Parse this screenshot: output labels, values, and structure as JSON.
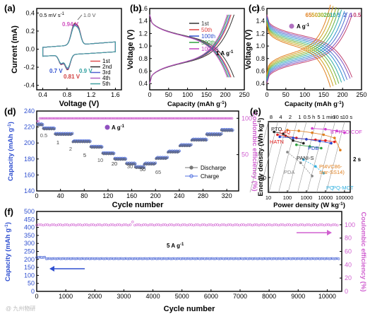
{
  "figure": {
    "watermark": "@ 九州物研"
  },
  "panels": {
    "a": {
      "letter": "(a)",
      "xlabel": "Voltage (V)",
      "ylabel": "Current (mA)",
      "xticks": [
        "0.4",
        "0.8",
        "1.2",
        "1.6"
      ],
      "yticks": [
        "-0.4",
        "-0.2",
        "0.0",
        "0.2",
        "0.4"
      ],
      "scan_rate": "0.5 mV s",
      "scan_rate_sup": "-1",
      "peak_labels": [
        "1.0 V",
        "0.94 V",
        "0.7 V",
        "0.81 V",
        "0.9 V"
      ],
      "legend": [
        "1st",
        "2nd",
        "3rd",
        "4th",
        "5th"
      ],
      "colors": [
        "#e05050",
        "#2b2b2b",
        "#5060d0",
        "#b060c0",
        "#40a0a0"
      ]
    },
    "b": {
      "letter": "(b)",
      "xlabel": "Capacity (mAh g",
      "xlabel_sup": "-1",
      "xlabel_end": ")",
      "ylabel": "Voltage (V)",
      "xticks": [
        "0",
        "50",
        "100",
        "150",
        "200",
        "250"
      ],
      "yticks": [
        "0.4",
        "0.6",
        "0.8",
        "1.0",
        "1.2",
        "1.4",
        "1.6"
      ],
      "legend": [
        "1st",
        "50th",
        "100th",
        "500th",
        "1000th"
      ],
      "colors": [
        "#333333",
        "#e04040",
        "#3050d0",
        "#30a040",
        "#c040c0"
      ],
      "current_label": "1 A g",
      "current_sup": "-1"
    },
    "c": {
      "letter": "(c)",
      "xlabel": "Capacity (mAh g",
      "xlabel_sup": "-1",
      "xlabel_end": ")",
      "ylabel": "Voltage (V)",
      "xticks": [
        "0",
        "50",
        "100",
        "150",
        "200",
        "250"
      ],
      "yticks": [
        "0.4",
        "0.6",
        "0.8",
        "1.0",
        "1.2",
        "1.4",
        "1.6"
      ],
      "rate_labels": [
        "65",
        "50",
        "30",
        "20",
        "10",
        "5",
        "2",
        "1",
        "0.5"
      ],
      "rate_colors": [
        "#e08020",
        "#d0a020",
        "#a0b020",
        "#60b040",
        "#30b0a0",
        "#3090d0",
        "#5070d0",
        "#8050c0",
        "#c04070"
      ],
      "unit_label": "A g",
      "unit_sup": "-1"
    },
    "d": {
      "letter": "(d)",
      "xlabel": "Cycle number",
      "ylabel": "Capacity (mAh g",
      "ylabel_sup": "-1",
      "ylabel_end": ")",
      "y2label": "Coulombic efficiency (%)",
      "xticks": [
        "0",
        "40",
        "80",
        "120",
        "160",
        "200",
        "240",
        "280",
        "320"
      ],
      "yticks": [
        "140",
        "160",
        "180",
        "200",
        "220",
        "240"
      ],
      "y2ticks": [
        "50",
        "100"
      ],
      "rate_labels": [
        "0.5",
        "1",
        "2",
        "5",
        "10",
        "20",
        "30",
        "50",
        "65"
      ],
      "unit_label": "A g",
      "unit_sup": "-1",
      "legend": [
        "Discharge",
        "Charge"
      ]
    },
    "e": {
      "letter": "(e)",
      "xlabel": "Power density (W kg",
      "xlabel_sup": "-1",
      "xlabel_end": ")",
      "ylabel": "Energy density (Wh kg",
      "ylabel_sup": "-1",
      "ylabel_end": ")",
      "xticks": [
        "10",
        "100",
        "1000",
        "10000",
        "100000"
      ],
      "yticks": [
        "100"
      ],
      "time_labels": [
        "8",
        "4",
        "2",
        "1",
        "0.5 h",
        "5",
        "1 min",
        "30 s",
        "10 s"
      ],
      "side_label": "2 s",
      "materials": [
        "PTO",
        "C4Q",
        "HATN",
        "BT-PTO COF",
        "PDB",
        "PANI-S",
        "PDA",
        "Pt4VC86-star-SS14)",
        "PQ",
        "PQ-MCT"
      ]
    },
    "f": {
      "letter": "(f)",
      "xlabel": "Cycle number",
      "ylabel": "Capacity (mAh g",
      "ylabel_sup": "-1",
      "ylabel_end": ")",
      "y2label": "Coulombic efficiency (%)",
      "xticks": [
        "0",
        "1000",
        "2000",
        "3000",
        "4000",
        "5000",
        "6000",
        "7000",
        "8000",
        "9000",
        "10000"
      ],
      "yticks": [
        "0",
        "50",
        "100",
        "150",
        "200",
        "250",
        "300",
        "350",
        "400",
        "450",
        "500"
      ],
      "y2ticks": [
        "0",
        "20",
        "40",
        "60",
        "80",
        "100"
      ],
      "current_label": "5 A g",
      "current_sup": "-1"
    }
  },
  "chart_data": [
    {
      "panel": "a",
      "type": "line",
      "title": "",
      "xlabel": "Voltage (V)",
      "ylabel": "Current (mA)",
      "xlim": [
        0.3,
        1.7
      ],
      "ylim": [
        -0.45,
        0.45
      ],
      "series_names": [
        "1st",
        "2nd",
        "3rd",
        "4th",
        "5th"
      ],
      "anodic_peak_V": [
        0.9,
        1.0
      ],
      "cathodic_peak_V": [
        0.7,
        0.81
      ],
      "peak_current_mA": {
        "anodic": 0.33,
        "cathodic": -0.27
      }
    },
    {
      "panel": "b",
      "type": "line",
      "xlabel": "Capacity (mAh g-1)",
      "ylabel": "Voltage (V)",
      "xlim": [
        0,
        250
      ],
      "ylim": [
        0.3,
        1.6
      ],
      "series": [
        {
          "name": "1st",
          "capacity": 223
        },
        {
          "name": "50th",
          "capacity": 215
        },
        {
          "name": "100th",
          "capacity": 212
        },
        {
          "name": "500th",
          "capacity": 208
        },
        {
          "name": "1000th",
          "capacity": 205
        }
      ]
    },
    {
      "panel": "c",
      "type": "line",
      "xlabel": "Capacity (mAh g-1)",
      "ylabel": "Voltage (V)",
      "xlim": [
        0,
        250
      ],
      "ylim": [
        0.3,
        1.6
      ],
      "series": [
        {
          "name": "0.5",
          "capacity": 225
        },
        {
          "name": "1",
          "capacity": 220
        },
        {
          "name": "2",
          "capacity": 212
        },
        {
          "name": "5",
          "capacity": 205
        },
        {
          "name": "10",
          "capacity": 197
        },
        {
          "name": "20",
          "capacity": 190
        },
        {
          "name": "30",
          "capacity": 183
        },
        {
          "name": "50",
          "capacity": 175
        },
        {
          "name": "65",
          "capacity": 168
        }
      ]
    },
    {
      "panel": "d",
      "type": "scatter",
      "xlabel": "Cycle number",
      "ylabel": "Capacity (mAh g-1)",
      "xlim": [
        0,
        340
      ],
      "ylim": [
        140,
        240
      ],
      "rate_steps": [
        {
          "rate": "0.5",
          "cycles": [
            1,
            10
          ],
          "capacity": 222
        },
        {
          "rate": "1",
          "cycles": [
            11,
            30
          ],
          "capacity": 217
        },
        {
          "rate": "2",
          "cycles": [
            31,
            60
          ],
          "capacity": 210
        },
        {
          "rate": "5",
          "cycles": [
            61,
            90
          ],
          "capacity": 201
        },
        {
          "rate": "10",
          "cycles": [
            91,
            110
          ],
          "capacity": 194
        },
        {
          "rate": "20",
          "cycles": [
            111,
            130
          ],
          "capacity": 186
        },
        {
          "rate": "30",
          "cycles": [
            131,
            150
          ],
          "capacity": 179
        },
        {
          "rate": "50",
          "cycles": [
            151,
            165
          ],
          "capacity": 173
        },
        {
          "rate": "65",
          "cycles": [
            166,
            180
          ],
          "capacity": 169
        }
      ],
      "coulombic_efficiency": 100
    },
    {
      "panel": "e",
      "type": "scatter",
      "xlabel": "Power density (W kg-1)",
      "ylabel": "Energy density (Wh kg-1)",
      "xscale": "log",
      "yscale": "log",
      "xlim": [
        10,
        200000
      ]
    },
    {
      "panel": "f",
      "type": "scatter",
      "xlabel": "Cycle number",
      "ylabel": "Capacity (mAh g-1)",
      "xlim": [
        0,
        10500
      ],
      "ylim": [
        0,
        500
      ],
      "capacity_mAh_g": 205,
      "coulombic_efficiency": 100
    }
  ]
}
